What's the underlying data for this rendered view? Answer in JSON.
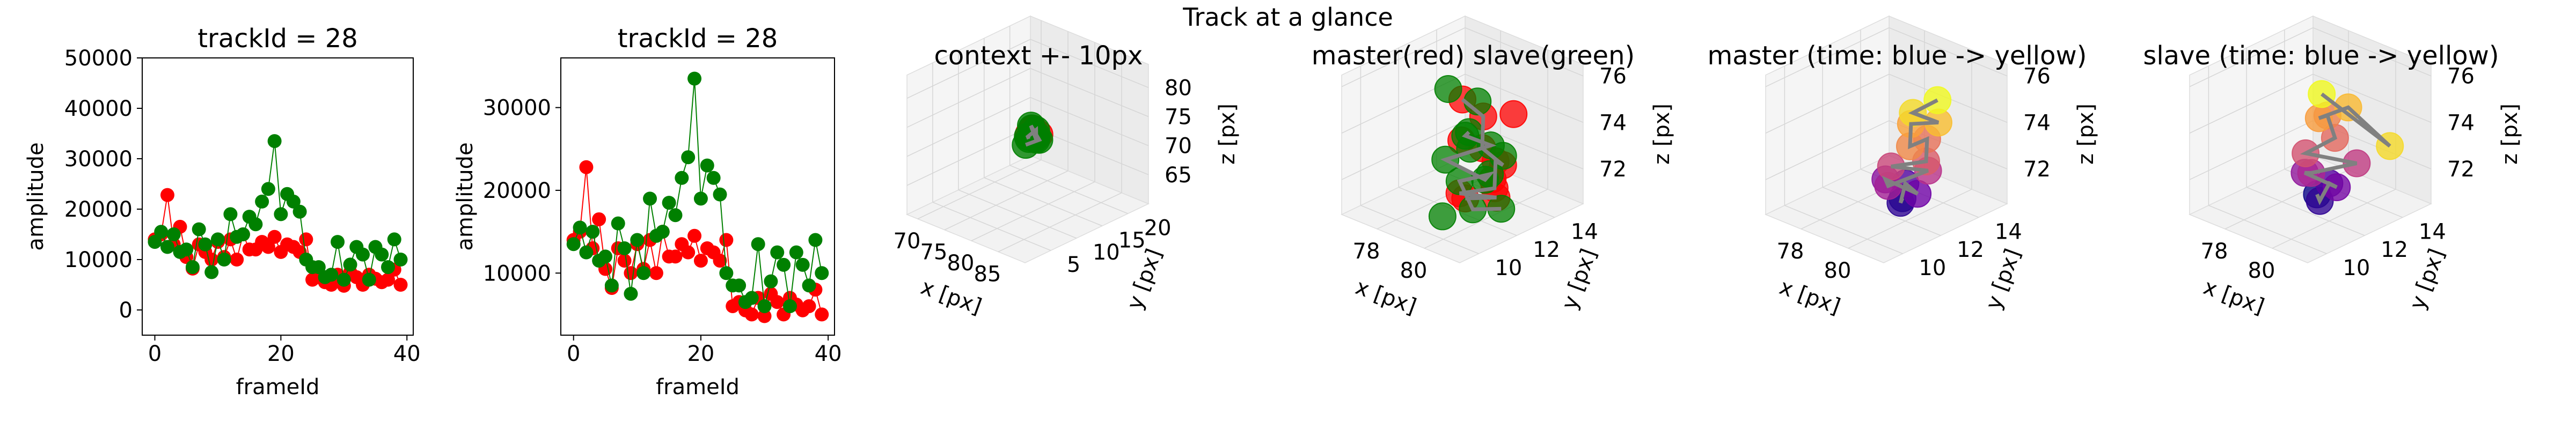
{
  "suptitle": "Track at a glance",
  "colors": {
    "master": "#ff0000",
    "slave": "#008000",
    "path": "#808080",
    "time_start": "#440154",
    "time_end": "#fde725",
    "master_cmap": [
      "#0d0887",
      "#6a00a8",
      "#b12a90",
      "#e16462",
      "#fca636",
      "#f0f921"
    ],
    "slave_cmap": [
      "#0d0887",
      "#6a00a8",
      "#b12a90",
      "#e16462",
      "#fca636",
      "#f0f921"
    ]
  },
  "chart_data": [
    {
      "type": "line",
      "title": "trackId = 28",
      "xlabel": "frameId",
      "ylabel": "amplitude",
      "xlim": [
        -2,
        41
      ],
      "ylim": [
        -5000,
        50000
      ],
      "xticks": [
        0,
        20,
        40
      ],
      "yticks": [
        0,
        10000,
        20000,
        30000,
        40000,
        50000
      ],
      "series": [
        {
          "color": "#ff0000",
          "x": [
            0,
            1,
            2,
            3,
            4,
            5,
            6,
            7,
            8,
            9,
            10,
            11,
            12,
            13,
            14,
            15,
            16,
            17,
            18,
            19,
            20,
            21,
            22,
            23,
            24,
            25,
            26,
            27,
            28,
            29,
            30,
            31,
            32,
            33,
            34,
            35,
            36,
            37,
            38,
            39
          ],
          "y": [
            14000,
            15000,
            22800,
            13000,
            16500,
            10500,
            8200,
            13000,
            11500,
            10000,
            13500,
            10500,
            14000,
            10000,
            15000,
            12000,
            12000,
            13500,
            12500,
            14500,
            11500,
            13000,
            12500,
            11500,
            14000,
            6000,
            6500,
            5500,
            5000,
            7000,
            4800,
            7500,
            6500,
            5000,
            7000,
            6200,
            5500,
            6000,
            8000,
            5000
          ]
        },
        {
          "color": "#008000",
          "x": [
            0,
            1,
            2,
            3,
            4,
            5,
            6,
            7,
            8,
            9,
            10,
            11,
            12,
            13,
            14,
            15,
            16,
            17,
            18,
            19,
            20,
            21,
            22,
            23,
            24,
            25,
            26,
            27,
            28,
            29,
            30,
            31,
            32,
            33,
            34,
            35,
            36,
            37,
            38,
            39
          ],
          "y": [
            13500,
            15500,
            12500,
            15000,
            11500,
            12000,
            8500,
            16000,
            13000,
            7500,
            14000,
            10000,
            19000,
            14500,
            15000,
            18500,
            17000,
            21500,
            24000,
            33500,
            19000,
            23000,
            21500,
            19500,
            10000,
            8500,
            8500,
            6500,
            7000,
            13500,
            6000,
            9000,
            12500,
            11000,
            6000,
            12500,
            11000,
            8500,
            14000,
            10000
          ]
        }
      ]
    },
    {
      "type": "line",
      "title": "trackId = 28",
      "xlabel": "frameId",
      "ylabel": "amplitude",
      "xlim": [
        -2,
        41
      ],
      "ylim": [
        2500,
        36000
      ],
      "xticks": [
        0,
        20,
        40
      ],
      "yticks": [
        10000,
        20000,
        30000
      ],
      "series": [
        {
          "color": "#ff0000",
          "x": [
            0,
            1,
            2,
            3,
            4,
            5,
            6,
            7,
            8,
            9,
            10,
            11,
            12,
            13,
            14,
            15,
            16,
            17,
            18,
            19,
            20,
            21,
            22,
            23,
            24,
            25,
            26,
            27,
            28,
            29,
            30,
            31,
            32,
            33,
            34,
            35,
            36,
            37,
            38,
            39
          ],
          "y": [
            14000,
            15000,
            22800,
            13000,
            16500,
            10500,
            8200,
            13000,
            11500,
            10000,
            13500,
            10500,
            14000,
            10000,
            15000,
            12000,
            12000,
            13500,
            12500,
            14500,
            11500,
            13000,
            12500,
            11500,
            14000,
            6000,
            6500,
            5500,
            5000,
            7000,
            4800,
            7500,
            6500,
            5000,
            7000,
            6200,
            5500,
            6000,
            8000,
            5000
          ]
        },
        {
          "color": "#008000",
          "x": [
            0,
            1,
            2,
            3,
            4,
            5,
            6,
            7,
            8,
            9,
            10,
            11,
            12,
            13,
            14,
            15,
            16,
            17,
            18,
            19,
            20,
            21,
            22,
            23,
            24,
            25,
            26,
            27,
            28,
            29,
            30,
            31,
            32,
            33,
            34,
            35,
            36,
            37,
            38,
            39
          ],
          "y": [
            13500,
            15500,
            12500,
            15000,
            11500,
            12000,
            8500,
            16000,
            13000,
            7500,
            14000,
            10000,
            19000,
            14500,
            15000,
            18500,
            17000,
            21500,
            24000,
            33500,
            19000,
            23000,
            21500,
            19500,
            10000,
            8500,
            8500,
            6500,
            7000,
            13500,
            6000,
            9000,
            12500,
            11000,
            6000,
            12500,
            11000,
            8500,
            14000,
            10000
          ]
        }
      ]
    },
    {
      "type": "scatter",
      "title": "context +- 10px",
      "xlabel": "x [px]",
      "ylabel": "y [px]",
      "zlabel": "z [px]",
      "xlim": [
        68,
        90
      ],
      "ylim": [
        0,
        24
      ],
      "zlim": [
        60,
        84
      ],
      "xticks": [
        70,
        75,
        80,
        85
      ],
      "yticks": [
        5,
        10,
        15,
        20
      ],
      "zticks": [
        65,
        70,
        75,
        80
      ],
      "points": [
        {
          "x": 79.2,
          "y": 12.0,
          "z": 73.0,
          "c": "#ff0000"
        },
        {
          "x": 79.6,
          "y": 12.4,
          "z": 73.8,
          "c": "#ff0000"
        },
        {
          "x": 80.2,
          "y": 11.8,
          "z": 74.4,
          "c": "#ff0000"
        },
        {
          "x": 80.6,
          "y": 12.6,
          "z": 73.2,
          "c": "#ff0000"
        },
        {
          "x": 79.0,
          "y": 12.2,
          "z": 72.0,
          "c": "#008000"
        },
        {
          "x": 79.4,
          "y": 11.6,
          "z": 72.8,
          "c": "#008000"
        },
        {
          "x": 79.8,
          "y": 12.8,
          "z": 73.6,
          "c": "#008000"
        },
        {
          "x": 80.4,
          "y": 12.2,
          "z": 72.4,
          "c": "#008000"
        },
        {
          "x": 78.8,
          "y": 13.0,
          "z": 73.4,
          "c": "#008000"
        },
        {
          "x": 79.6,
          "y": 12.0,
          "z": 74.6,
          "c": "#008000"
        },
        {
          "x": 80.0,
          "y": 13.2,
          "z": 71.8,
          "c": "#008000"
        },
        {
          "x": 79.2,
          "y": 11.4,
          "z": 71.4,
          "c": "#008000"
        },
        {
          "x": 80.8,
          "y": 11.6,
          "z": 73.0,
          "c": "#008000"
        },
        {
          "x": 79.4,
          "y": 13.4,
          "z": 72.2,
          "c": "#008000"
        }
      ]
    },
    {
      "type": "scatter",
      "title": "master(red) slave(green)",
      "xlabel": "x [px]",
      "ylabel": "y [px]",
      "zlabel": "z [px]",
      "xlim": [
        76.5,
        81.5
      ],
      "ylim": [
        9,
        15.5
      ],
      "zlim": [
        70.5,
        76.5
      ],
      "xticks": [
        78,
        80
      ],
      "yticks": [
        10,
        12,
        14
      ],
      "zticks": [
        72,
        74,
        76
      ],
      "master": [
        {
          "x": 79.2,
          "y": 12.0,
          "z": 75.4
        },
        {
          "x": 79.6,
          "y": 12.6,
          "z": 74.6
        },
        {
          "x": 80.2,
          "y": 11.8,
          "z": 73.8
        },
        {
          "x": 80.6,
          "y": 12.4,
          "z": 73.0
        },
        {
          "x": 79.8,
          "y": 13.0,
          "z": 72.6
        },
        {
          "x": 80.4,
          "y": 12.2,
          "z": 72.0
        },
        {
          "x": 79.4,
          "y": 11.6,
          "z": 71.6
        },
        {
          "x": 80.0,
          "y": 12.8,
          "z": 71.2
        },
        {
          "x": 79.0,
          "y": 12.4,
          "z": 70.9
        },
        {
          "x": 80.8,
          "y": 11.6,
          "z": 72.8
        },
        {
          "x": 79.8,
          "y": 11.2,
          "z": 74.2
        },
        {
          "x": 80.4,
          "y": 13.2,
          "z": 74.8
        }
      ],
      "slave": [
        {
          "x": 78.6,
          "y": 12.0,
          "z": 75.6
        },
        {
          "x": 79.2,
          "y": 12.8,
          "z": 75.0
        },
        {
          "x": 79.8,
          "y": 11.6,
          "z": 74.4
        },
        {
          "x": 79.0,
          "y": 12.4,
          "z": 73.6
        },
        {
          "x": 79.6,
          "y": 13.0,
          "z": 73.2
        },
        {
          "x": 78.8,
          "y": 11.6,
          "z": 72.8
        },
        {
          "x": 80.0,
          "y": 12.2,
          "z": 72.2
        },
        {
          "x": 79.4,
          "y": 13.2,
          "z": 71.8
        },
        {
          "x": 78.6,
          "y": 12.6,
          "z": 71.4
        },
        {
          "x": 79.8,
          "y": 11.8,
          "z": 71.0
        },
        {
          "x": 80.2,
          "y": 12.8,
          "z": 70.8
        },
        {
          "x": 79.0,
          "y": 11.2,
          "z": 70.6
        },
        {
          "x": 78.4,
          "y": 13.4,
          "z": 72.4
        },
        {
          "x": 80.6,
          "y": 12.4,
          "z": 73.4
        }
      ]
    },
    {
      "type": "scatter",
      "title": "master (time: blue -> yellow)",
      "xlabel": "x [px]",
      "ylabel": "y [px]",
      "zlabel": "z [px]",
      "xlim": [
        76.5,
        81.5
      ],
      "ylim": [
        9,
        15.5
      ],
      "zlim": [
        70.5,
        76.5
      ],
      "xticks": [
        78,
        80
      ],
      "yticks": [
        10,
        12,
        14
      ],
      "zticks": [
        72,
        74,
        76
      ],
      "points": [
        {
          "x": 79.4,
          "y": 12.6,
          "z": 71.0,
          "t": 0
        },
        {
          "x": 79.8,
          "y": 12.0,
          "z": 71.2,
          "t": 1
        },
        {
          "x": 79.2,
          "y": 13.0,
          "z": 71.4,
          "t": 2
        },
        {
          "x": 80.2,
          "y": 12.4,
          "z": 71.6,
          "t": 3
        },
        {
          "x": 79.0,
          "y": 12.2,
          "z": 71.8,
          "t": 4
        },
        {
          "x": 79.6,
          "y": 11.6,
          "z": 72.0,
          "t": 5
        },
        {
          "x": 80.0,
          "y": 13.2,
          "z": 72.2,
          "t": 6
        },
        {
          "x": 79.4,
          "y": 12.0,
          "z": 72.6,
          "t": 7
        },
        {
          "x": 80.4,
          "y": 12.6,
          "z": 73.0,
          "t": 8
        },
        {
          "x": 79.8,
          "y": 13.4,
          "z": 73.4,
          "t": 9
        },
        {
          "x": 80.2,
          "y": 12.0,
          "z": 73.8,
          "t": 10
        },
        {
          "x": 79.6,
          "y": 12.8,
          "z": 74.2,
          "t": 11
        },
        {
          "x": 80.6,
          "y": 13.0,
          "z": 74.6,
          "t": 12
        },
        {
          "x": 80.0,
          "y": 12.4,
          "z": 75.0,
          "t": 13
        },
        {
          "x": 80.4,
          "y": 13.2,
          "z": 75.4,
          "t": 14
        }
      ]
    },
    {
      "type": "scatter",
      "title": "slave (time: blue -> yellow)",
      "xlabel": "x [px]",
      "ylabel": "y [px]",
      "zlabel": "z [px]",
      "xlim": [
        76.5,
        81.5
      ],
      "ylim": [
        9,
        15.5
      ],
      "zlim": [
        70.5,
        76.5
      ],
      "xticks": [
        78,
        80
      ],
      "yticks": [
        10,
        12,
        14
      ],
      "zticks": [
        72,
        74,
        76
      ],
      "points": [
        {
          "x": 79.0,
          "y": 12.6,
          "z": 71.0,
          "t": 0
        },
        {
          "x": 79.6,
          "y": 12.0,
          "z": 71.2,
          "t": 1
        },
        {
          "x": 79.2,
          "y": 13.0,
          "z": 71.4,
          "t": 2
        },
        {
          "x": 80.0,
          "y": 12.4,
          "z": 71.8,
          "t": 3
        },
        {
          "x": 78.8,
          "y": 12.2,
          "z": 72.0,
          "t": 4
        },
        {
          "x": 79.4,
          "y": 11.8,
          "z": 72.4,
          "t": 5
        },
        {
          "x": 80.2,
          "y": 13.2,
          "z": 72.6,
          "t": 6
        },
        {
          "x": 79.0,
          "y": 12.0,
          "z": 73.0,
          "t": 7
        },
        {
          "x": 79.6,
          "y": 12.8,
          "z": 73.6,
          "t": 8
        },
        {
          "x": 78.8,
          "y": 13.4,
          "z": 74.0,
          "t": 9
        },
        {
          "x": 79.4,
          "y": 12.2,
          "z": 74.6,
          "t": 10
        },
        {
          "x": 80.0,
          "y": 13.0,
          "z": 75.0,
          "t": 11
        },
        {
          "x": 80.8,
          "y": 14.2,
          "z": 73.2,
          "t": 12
        },
        {
          "x": 79.2,
          "y": 12.6,
          "z": 75.4,
          "t": 13
        }
      ]
    }
  ]
}
